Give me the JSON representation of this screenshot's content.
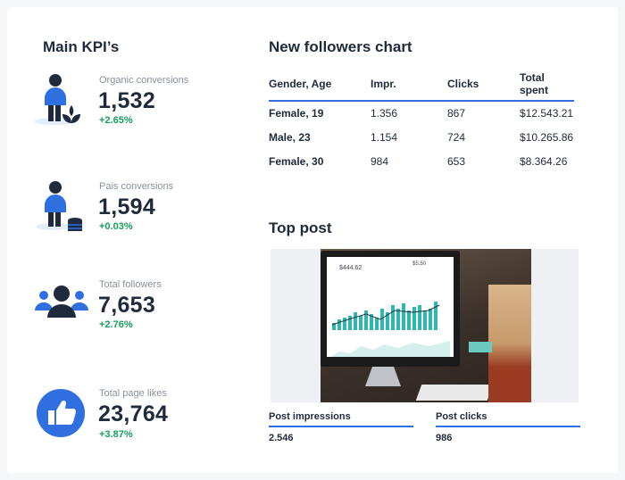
{
  "kpi": {
    "title": "Main KPI’s",
    "items": [
      {
        "label": "Organic conversions",
        "value": "1,532",
        "change": "+2.65%",
        "icon": "person-plant-icon"
      },
      {
        "label": "Pais conversions",
        "value": "1,594",
        "change": "+0.03%",
        "icon": "person-coins-icon"
      },
      {
        "label": "Total followers",
        "value": "7,653",
        "change": "+2.76%",
        "icon": "group-icon"
      },
      {
        "label": "Total page likes",
        "value": "23,764",
        "change": "+3.87%",
        "icon": "thumbs-up-icon"
      }
    ]
  },
  "followers": {
    "title": "New followers chart",
    "columns": [
      "Gender, Age",
      "Impr.",
      "Clicks",
      "Total spent"
    ],
    "rows": [
      [
        "Female, 19",
        "1.356",
        "867",
        "$12.543.21"
      ],
      [
        "Male, 23",
        "1.154",
        "724",
        "$10.265.86"
      ],
      [
        "Female, 30",
        "984",
        "653",
        "$8.364.26"
      ]
    ]
  },
  "top_post": {
    "title": "Top post",
    "screen_values": [
      "$444.62",
      "$5.50"
    ],
    "stats": [
      {
        "label": "Post impressions",
        "value": "2.546"
      },
      {
        "label": "Post clicks",
        "value": "986"
      }
    ]
  },
  "colors": {
    "accent": "#2f6fe0",
    "positive": "#13a05a",
    "dark": "#1f2a3c"
  }
}
